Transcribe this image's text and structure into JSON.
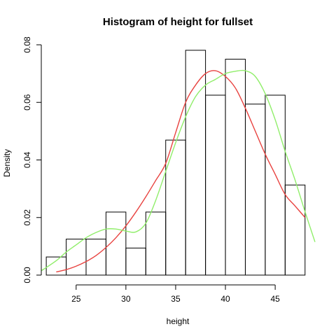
{
  "chart_data": {
    "type": "bar",
    "title": "Histogram of height for fullset",
    "xlabel": "height",
    "ylabel": "Density",
    "xlim": [
      21.5,
      49
    ],
    "ylim": [
      0,
      0.08
    ],
    "x_ticks": [
      25,
      30,
      35,
      40,
      45
    ],
    "x_tick_labels": [
      "25",
      "30",
      "35",
      "40",
      "45"
    ],
    "y_ticks": [
      0,
      0.02,
      0.04,
      0.06,
      0.08
    ],
    "y_tick_labels": [
      "0.00",
      "0.02",
      "0.04",
      "0.06",
      "0.08"
    ],
    "bins": [
      {
        "start": 22,
        "end": 24,
        "density": 0.0063
      },
      {
        "start": 24,
        "end": 26,
        "density": 0.0125
      },
      {
        "start": 26,
        "end": 28,
        "density": 0.0125
      },
      {
        "start": 28,
        "end": 30,
        "density": 0.0219
      },
      {
        "start": 30,
        "end": 32,
        "density": 0.0094
      },
      {
        "start": 32,
        "end": 34,
        "density": 0.0219
      },
      {
        "start": 34,
        "end": 36,
        "density": 0.0469
      },
      {
        "start": 36,
        "end": 38,
        "density": 0.0781
      },
      {
        "start": 38,
        "end": 40,
        "density": 0.0625
      },
      {
        "start": 40,
        "end": 42,
        "density": 0.075
      },
      {
        "start": 42,
        "end": 44,
        "density": 0.0594
      },
      {
        "start": 44,
        "end": 46,
        "density": 0.0625
      },
      {
        "start": 46,
        "end": 48,
        "density": 0.0313
      }
    ],
    "series": [
      {
        "color": "#e8423f",
        "x": [
          23,
          24,
          25,
          26,
          27,
          28,
          29,
          30,
          31,
          32,
          33,
          34,
          35,
          36,
          37,
          38,
          39,
          40,
          41,
          42,
          43,
          44,
          45,
          46,
          47,
          48
        ],
        "values": [
          0.0011,
          0.0019,
          0.0031,
          0.0047,
          0.0068,
          0.0096,
          0.013,
          0.0171,
          0.0219,
          0.0272,
          0.0329,
          0.0388,
          0.0495,
          0.06,
          0.066,
          0.07,
          0.071,
          0.069,
          0.065,
          0.058,
          0.05,
          0.042,
          0.035,
          0.028,
          0.024,
          0.02
        ]
      },
      {
        "color": "#90ee6a",
        "x": [
          21.5,
          23,
          24,
          25,
          26,
          27,
          28,
          29,
          30,
          31,
          32,
          33,
          34,
          35,
          36,
          37,
          38,
          39,
          40,
          41,
          42,
          43,
          44,
          45,
          46,
          47,
          48,
          49
        ],
        "values": [
          0.0015,
          0.005,
          0.008,
          0.0105,
          0.013,
          0.0148,
          0.016,
          0.016,
          0.0153,
          0.015,
          0.018,
          0.026,
          0.036,
          0.046,
          0.055,
          0.062,
          0.066,
          0.068,
          0.07,
          0.0708,
          0.071,
          0.069,
          0.063,
          0.054,
          0.043,
          0.033,
          0.022,
          0.0115
        ]
      }
    ]
  }
}
